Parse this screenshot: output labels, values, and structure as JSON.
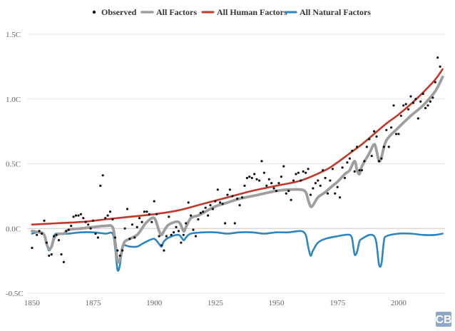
{
  "chart_data": {
    "type": "line",
    "title": "",
    "xlabel": "",
    "ylabel": "",
    "xlim": [
      1848,
      2019
    ],
    "ylim": [
      -0.5,
      1.5
    ],
    "x_ticks": [
      1850,
      1875,
      1900,
      1925,
      1950,
      1975,
      2000
    ],
    "y_ticks": [
      -0.5,
      0.0,
      0.5,
      1.0,
      1.5
    ],
    "y_tick_labels": [
      "-0.5C",
      "0.0C",
      "0.5C",
      "1.0C",
      "1.5C"
    ],
    "grid": "horizontal",
    "legend_position": "top-center",
    "legend": [
      "Observed",
      "All Factors",
      "All Human Factors",
      "All Natural Factors"
    ],
    "colors": {
      "observed": "#111111",
      "all_factors": "#9e9e9e",
      "all_human": "#c0392b",
      "all_natural": "#2e86c1",
      "gridline": "#e6e6e6",
      "baseline": "#c8c8c8",
      "logo": "#8fa6c9"
    },
    "logo": "CB",
    "observed": [
      [
        1850,
        -0.15
      ],
      [
        1852,
        -0.05
      ],
      [
        1853,
        -0.02
      ],
      [
        1854,
        -0.04
      ],
      [
        1855,
        0.06
      ],
      [
        1856,
        -0.11
      ],
      [
        1857,
        -0.21
      ],
      [
        1858,
        -0.2
      ],
      [
        1859,
        -0.06
      ],
      [
        1860,
        -0.05
      ],
      [
        1861,
        -0.09
      ],
      [
        1862,
        -0.2
      ],
      [
        1863,
        -0.26
      ],
      [
        1864,
        -0.02
      ],
      [
        1865,
        -0.01
      ],
      [
        1866,
        0.02
      ],
      [
        1867,
        0.09
      ],
      [
        1868,
        0.1
      ],
      [
        1869,
        0.1
      ],
      [
        1870,
        0.11
      ],
      [
        1871,
        0.08
      ],
      [
        1872,
        0.05
      ],
      [
        1873,
        0.03
      ],
      [
        1874,
        0.0
      ],
      [
        1875,
        0.06
      ],
      [
        1876,
        -0.04
      ],
      [
        1877,
        -0.07
      ],
      [
        1878,
        0.33
      ],
      [
        1879,
        0.41
      ],
      [
        1880,
        0.08
      ],
      [
        1881,
        0.1
      ],
      [
        1882,
        0.13
      ],
      [
        1883,
        0.07
      ],
      [
        1884,
        -0.07
      ],
      [
        1885,
        -0.17
      ],
      [
        1886,
        -0.21
      ],
      [
        1887,
        -0.17
      ],
      [
        1888,
        0.0
      ],
      [
        1889,
        0.15
      ],
      [
        1890,
        -0.08
      ],
      [
        1891,
        0.03
      ],
      [
        1892,
        -0.07
      ],
      [
        1893,
        0.01
      ],
      [
        1894,
        0.08
      ],
      [
        1895,
        0.05
      ],
      [
        1896,
        0.13
      ],
      [
        1897,
        0.13
      ],
      [
        1898,
        0.11
      ],
      [
        1899,
        0.05
      ],
      [
        1900,
        0.21
      ],
      [
        1901,
        0.11
      ],
      [
        1902,
        -0.06
      ],
      [
        1903,
        -0.13
      ],
      [
        1904,
        -0.17
      ],
      [
        1905,
        -0.06
      ],
      [
        1906,
        0.09
      ],
      [
        1907,
        -0.05
      ],
      [
        1908,
        -0.03
      ],
      [
        1909,
        0.01
      ],
      [
        1910,
        -0.02
      ],
      [
        1911,
        -0.11
      ],
      [
        1912,
        -0.05
      ],
      [
        1913,
        0.04
      ],
      [
        1914,
        0.2
      ],
      [
        1915,
        0.1
      ],
      [
        1916,
        -0.01
      ],
      [
        1917,
        -0.06
      ],
      [
        1918,
        0.07
      ],
      [
        1919,
        0.12
      ],
      [
        1920,
        0.13
      ],
      [
        1921,
        0.16
      ],
      [
        1922,
        0.1
      ],
      [
        1923,
        0.18
      ],
      [
        1924,
        0.15
      ],
      [
        1925,
        0.21
      ],
      [
        1926,
        0.3
      ],
      [
        1927,
        0.2
      ],
      [
        1928,
        0.19
      ],
      [
        1929,
        0.04
      ],
      [
        1930,
        0.26
      ],
      [
        1931,
        0.3
      ],
      [
        1932,
        0.25
      ],
      [
        1933,
        0.04
      ],
      [
        1934,
        0.23
      ],
      [
        1935,
        0.18
      ],
      [
        1936,
        0.24
      ],
      [
        1937,
        0.33
      ],
      [
        1938,
        0.39
      ],
      [
        1939,
        0.4
      ],
      [
        1940,
        0.39
      ],
      [
        1941,
        0.42
      ],
      [
        1942,
        0.38
      ],
      [
        1943,
        0.37
      ],
      [
        1944,
        0.52
      ],
      [
        1945,
        0.43
      ],
      [
        1946,
        0.33
      ],
      [
        1947,
        0.38
      ],
      [
        1948,
        0.35
      ],
      [
        1949,
        0.31
      ],
      [
        1950,
        0.29
      ],
      [
        1951,
        0.35
      ],
      [
        1952,
        0.4
      ],
      [
        1953,
        0.48
      ],
      [
        1954,
        0.27
      ],
      [
        1955,
        0.29
      ],
      [
        1956,
        0.22
      ],
      [
        1957,
        0.37
      ],
      [
        1958,
        0.42
      ],
      [
        1959,
        0.43
      ],
      [
        1960,
        0.37
      ],
      [
        1961,
        0.44
      ],
      [
        1962,
        0.43
      ],
      [
        1963,
        0.46
      ],
      [
        1964,
        0.26
      ],
      [
        1965,
        0.31
      ],
      [
        1966,
        0.35
      ],
      [
        1967,
        0.37
      ],
      [
        1968,
        0.33
      ],
      [
        1969,
        0.45
      ],
      [
        1970,
        0.39
      ],
      [
        1971,
        0.27
      ],
      [
        1972,
        0.37
      ],
      [
        1973,
        0.46
      ],
      [
        1974,
        0.27
      ],
      [
        1975,
        0.32
      ],
      [
        1976,
        0.24
      ],
      [
        1977,
        0.47
      ],
      [
        1978,
        0.39
      ],
      [
        1979,
        0.51
      ],
      [
        1980,
        0.54
      ],
      [
        1981,
        0.6
      ],
      [
        1982,
        0.44
      ],
      [
        1983,
        0.63
      ],
      [
        1984,
        0.45
      ],
      [
        1985,
        0.45
      ],
      [
        1986,
        0.52
      ],
      [
        1987,
        0.63
      ],
      [
        1988,
        0.69
      ],
      [
        1989,
        0.56
      ],
      [
        1990,
        0.75
      ],
      [
        1991,
        0.71
      ],
      [
        1992,
        0.52
      ],
      [
        1993,
        0.54
      ],
      [
        1994,
        0.63
      ],
      [
        1995,
        0.76
      ],
      [
        1996,
        0.63
      ],
      [
        1997,
        0.78
      ],
      [
        1998,
        0.95
      ],
      [
        1999,
        0.73
      ],
      [
        2000,
        0.73
      ],
      [
        2001,
        0.87
      ],
      [
        2002,
        0.95
      ],
      [
        2003,
        0.96
      ],
      [
        2004,
        0.92
      ],
      [
        2005,
        1.02
      ],
      [
        2006,
        0.97
      ],
      [
        2007,
        1.0
      ],
      [
        2008,
        0.85
      ],
      [
        2009,
        0.98
      ],
      [
        2010,
        1.04
      ],
      [
        2011,
        0.93
      ],
      [
        2012,
        0.95
      ],
      [
        2013,
        0.98
      ],
      [
        2014,
        1.01
      ],
      [
        2015,
        1.13
      ],
      [
        2016,
        1.32
      ],
      [
        2017,
        1.25
      ]
    ],
    "all_human": [
      [
        1850,
        0.03
      ],
      [
        1860,
        0.04
      ],
      [
        1870,
        0.05
      ],
      [
        1880,
        0.07
      ],
      [
        1890,
        0.09
      ],
      [
        1900,
        0.11
      ],
      [
        1910,
        0.14
      ],
      [
        1920,
        0.19
      ],
      [
        1930,
        0.24
      ],
      [
        1940,
        0.29
      ],
      [
        1950,
        0.33
      ],
      [
        1960,
        0.37
      ],
      [
        1970,
        0.45
      ],
      [
        1975,
        0.51
      ],
      [
        1980,
        0.58
      ],
      [
        1985,
        0.65
      ],
      [
        1990,
        0.73
      ],
      [
        1995,
        0.81
      ],
      [
        2000,
        0.88
      ],
      [
        2005,
        0.96
      ],
      [
        2010,
        1.05
      ],
      [
        2015,
        1.15
      ],
      [
        2018,
        1.23
      ]
    ],
    "all_factors": [
      [
        1850,
        -0.02
      ],
      [
        1853,
        -0.03
      ],
      [
        1855,
        -0.05
      ],
      [
        1856,
        -0.12
      ],
      [
        1857,
        -0.16
      ],
      [
        1858,
        -0.14
      ],
      [
        1859,
        -0.08
      ],
      [
        1860,
        -0.05
      ],
      [
        1862,
        -0.04
      ],
      [
        1863,
        -0.04
      ],
      [
        1865,
        -0.01
      ],
      [
        1870,
        0.0
      ],
      [
        1875,
        0.01
      ],
      [
        1880,
        0.02
      ],
      [
        1883,
        0.01
      ],
      [
        1884,
        -0.1
      ],
      [
        1885,
        -0.25
      ],
      [
        1886,
        -0.24
      ],
      [
        1887,
        -0.15
      ],
      [
        1888,
        -0.1
      ],
      [
        1890,
        -0.08
      ],
      [
        1893,
        -0.05
      ],
      [
        1895,
        0.0
      ],
      [
        1897,
        0.05
      ],
      [
        1900,
        0.08
      ],
      [
        1902,
        -0.02
      ],
      [
        1903,
        -0.05
      ],
      [
        1904,
        -0.02
      ],
      [
        1906,
        0.03
      ],
      [
        1910,
        0.05
      ],
      [
        1912,
        -0.02
      ],
      [
        1913,
        0.01
      ],
      [
        1915,
        0.08
      ],
      [
        1918,
        0.1
      ],
      [
        1920,
        0.12
      ],
      [
        1925,
        0.17
      ],
      [
        1930,
        0.2
      ],
      [
        1935,
        0.23
      ],
      [
        1940,
        0.25
      ],
      [
        1945,
        0.27
      ],
      [
        1950,
        0.29
      ],
      [
        1955,
        0.3
      ],
      [
        1960,
        0.3
      ],
      [
        1962,
        0.28
      ],
      [
        1963,
        0.22
      ],
      [
        1964,
        0.17
      ],
      [
        1965,
        0.18
      ],
      [
        1967,
        0.24
      ],
      [
        1970,
        0.28
      ],
      [
        1973,
        0.33
      ],
      [
        1975,
        0.36
      ],
      [
        1978,
        0.42
      ],
      [
        1980,
        0.45
      ],
      [
        1982,
        0.52
      ],
      [
        1983,
        0.45
      ],
      [
        1984,
        0.42
      ],
      [
        1985,
        0.48
      ],
      [
        1988,
        0.58
      ],
      [
        1990,
        0.65
      ],
      [
        1991,
        0.6
      ],
      [
        1992,
        0.52
      ],
      [
        1993,
        0.55
      ],
      [
        1995,
        0.68
      ],
      [
        2000,
        0.78
      ],
      [
        2005,
        0.87
      ],
      [
        2010,
        0.95
      ],
      [
        2015,
        1.06
      ],
      [
        2018,
        1.17
      ]
    ],
    "all_natural": [
      [
        1850,
        -0.04
      ],
      [
        1852,
        -0.03
      ],
      [
        1854,
        -0.03
      ],
      [
        1855,
        -0.05
      ],
      [
        1856,
        -0.12
      ],
      [
        1857,
        -0.17
      ],
      [
        1858,
        -0.13
      ],
      [
        1859,
        -0.06
      ],
      [
        1860,
        -0.04
      ],
      [
        1862,
        -0.04
      ],
      [
        1863,
        -0.04
      ],
      [
        1865,
        -0.04
      ],
      [
        1870,
        -0.03
      ],
      [
        1875,
        -0.03
      ],
      [
        1880,
        -0.04
      ],
      [
        1883,
        -0.04
      ],
      [
        1884,
        -0.15
      ],
      [
        1885,
        -0.32
      ],
      [
        1886,
        -0.28
      ],
      [
        1887,
        -0.14
      ],
      [
        1888,
        -0.13
      ],
      [
        1890,
        -0.14
      ],
      [
        1893,
        -0.14
      ],
      [
        1895,
        -0.12
      ],
      [
        1897,
        -0.1
      ],
      [
        1900,
        -0.08
      ],
      [
        1902,
        -0.12
      ],
      [
        1903,
        -0.14
      ],
      [
        1904,
        -0.1
      ],
      [
        1906,
        -0.07
      ],
      [
        1910,
        -0.05
      ],
      [
        1912,
        -0.09
      ],
      [
        1913,
        -0.07
      ],
      [
        1915,
        -0.04
      ],
      [
        1920,
        -0.03
      ],
      [
        1925,
        -0.03
      ],
      [
        1930,
        -0.04
      ],
      [
        1935,
        -0.03
      ],
      [
        1940,
        -0.03
      ],
      [
        1945,
        -0.04
      ],
      [
        1950,
        -0.03
      ],
      [
        1955,
        -0.03
      ],
      [
        1960,
        -0.02
      ],
      [
        1962,
        -0.05
      ],
      [
        1963,
        -0.14
      ],
      [
        1964,
        -0.21
      ],
      [
        1965,
        -0.17
      ],
      [
        1967,
        -0.11
      ],
      [
        1970,
        -0.08
      ],
      [
        1975,
        -0.06
      ],
      [
        1978,
        -0.05
      ],
      [
        1980,
        -0.05
      ],
      [
        1981,
        -0.08
      ],
      [
        1982,
        -0.2
      ],
      [
        1983,
        -0.18
      ],
      [
        1984,
        -0.1
      ],
      [
        1985,
        -0.08
      ],
      [
        1988,
        -0.05
      ],
      [
        1990,
        -0.06
      ],
      [
        1991,
        -0.12
      ],
      [
        1992,
        -0.28
      ],
      [
        1993,
        -0.27
      ],
      [
        1994,
        -0.1
      ],
      [
        1995,
        -0.06
      ],
      [
        2000,
        -0.04
      ],
      [
        2005,
        -0.04
      ],
      [
        2010,
        -0.05
      ],
      [
        2015,
        -0.05
      ],
      [
        2018,
        -0.04
      ]
    ]
  }
}
